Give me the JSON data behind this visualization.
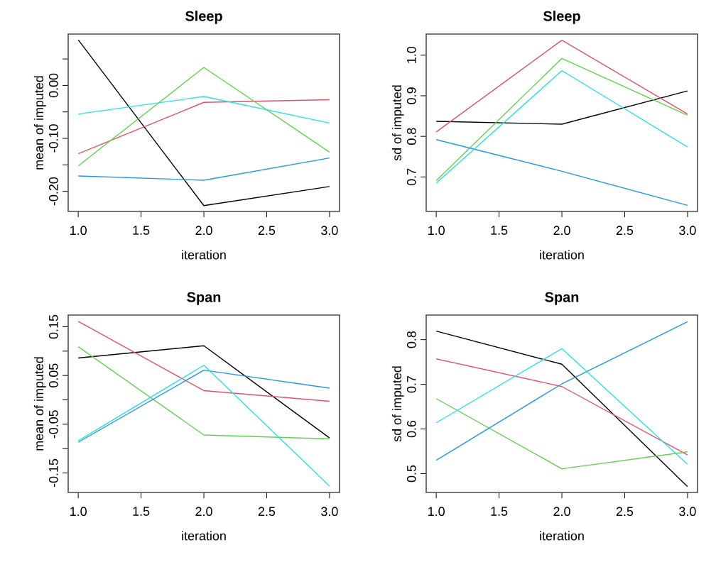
{
  "chart_data": [
    {
      "type": "line",
      "title": "Sleep",
      "xlabel": "iteration",
      "ylabel": "mean of imputed",
      "x": [
        1,
        2,
        3
      ],
      "xlim": [
        0.92,
        3.08
      ],
      "ylim": [
        -0.238,
        0.097
      ],
      "xticks": [
        {
          "value": 1,
          "label": "1.0"
        },
        {
          "value": 1.5,
          "label": "1.5"
        },
        {
          "value": 2,
          "label": "2.0"
        },
        {
          "value": 2.5,
          "label": "2.5"
        },
        {
          "value": 3,
          "label": "3.0"
        }
      ],
      "yticks": [
        {
          "value": -0.2,
          "label": "-0.20"
        },
        {
          "value": -0.15,
          "label": null
        },
        {
          "value": -0.1,
          "label": "-0.10"
        },
        {
          "value": -0.05,
          "label": null
        },
        {
          "value": 0,
          "label": "0.00"
        },
        {
          "value": 0.05,
          "label": null
        }
      ],
      "series": [
        {
          "color": "#000000",
          "values": [
            0.086,
            -0.227,
            -0.191
          ]
        },
        {
          "color": "#df536b",
          "values": [
            -0.129,
            -0.032,
            -0.027
          ]
        },
        {
          "color": "#61d04f",
          "values": [
            -0.152,
            0.034,
            -0.126
          ]
        },
        {
          "color": "#2297e6",
          "values": [
            -0.171,
            -0.179,
            -0.137
          ]
        },
        {
          "color": "#28e2e5",
          "values": [
            -0.054,
            -0.021,
            -0.071
          ]
        }
      ]
    },
    {
      "type": "line",
      "title": "Sleep",
      "xlabel": "iteration",
      "ylabel": "sd of imputed",
      "x": [
        1,
        2,
        3
      ],
      "xlim": [
        0.92,
        3.08
      ],
      "ylim": [
        0.615,
        1.052
      ],
      "xticks": [
        {
          "value": 1,
          "label": "1.0"
        },
        {
          "value": 1.5,
          "label": "1.5"
        },
        {
          "value": 2,
          "label": "2.0"
        },
        {
          "value": 2.5,
          "label": "2.5"
        },
        {
          "value": 3,
          "label": "3.0"
        }
      ],
      "yticks": [
        {
          "value": 0.7,
          "label": "0.7"
        },
        {
          "value": 0.8,
          "label": "0.8"
        },
        {
          "value": 0.9,
          "label": "0.9"
        },
        {
          "value": 1.0,
          "label": "1.0"
        }
      ],
      "series": [
        {
          "color": "#000000",
          "values": [
            0.837,
            0.83,
            0.912
          ]
        },
        {
          "color": "#df536b",
          "values": [
            0.811,
            1.037,
            0.855
          ]
        },
        {
          "color": "#61d04f",
          "values": [
            0.691,
            0.992,
            0.852
          ]
        },
        {
          "color": "#2297e6",
          "values": [
            0.792,
            0.714,
            0.63
          ]
        },
        {
          "color": "#28e2e5",
          "values": [
            0.685,
            0.962,
            0.774
          ]
        }
      ]
    },
    {
      "type": "line",
      "title": "Span",
      "xlabel": "iteration",
      "ylabel": "mean of imputed",
      "x": [
        1,
        2,
        3
      ],
      "xlim": [
        0.92,
        3.08
      ],
      "ylim": [
        -0.19,
        0.174
      ],
      "xticks": [
        {
          "value": 1,
          "label": "1.0"
        },
        {
          "value": 1.5,
          "label": "1.5"
        },
        {
          "value": 2,
          "label": "2.0"
        },
        {
          "value": 2.5,
          "label": "2.5"
        },
        {
          "value": 3,
          "label": "3.0"
        }
      ],
      "yticks": [
        {
          "value": -0.15,
          "label": "-0.15"
        },
        {
          "value": -0.1,
          "label": null
        },
        {
          "value": -0.05,
          "label": "-0.05"
        },
        {
          "value": 0,
          "label": null
        },
        {
          "value": 0.05,
          "label": "0.05"
        },
        {
          "value": 0.1,
          "label": null
        },
        {
          "value": 0.15,
          "label": "0.15"
        }
      ],
      "series": [
        {
          "color": "#000000",
          "values": [
            0.086,
            0.111,
            -0.078
          ]
        },
        {
          "color": "#df536b",
          "values": [
            0.161,
            0.019,
            -0.003
          ]
        },
        {
          "color": "#61d04f",
          "values": [
            0.109,
            -0.072,
            -0.08
          ]
        },
        {
          "color": "#2297e6",
          "values": [
            -0.087,
            0.061,
            0.024
          ]
        },
        {
          "color": "#28e2e5",
          "values": [
            -0.084,
            0.071,
            -0.177
          ]
        }
      ]
    },
    {
      "type": "line",
      "title": "Span",
      "xlabel": "iteration",
      "ylabel": "sd of imputed",
      "x": [
        1,
        2,
        3
      ],
      "xlim": [
        0.92,
        3.08
      ],
      "ylim": [
        0.458,
        0.855
      ],
      "xticks": [
        {
          "value": 1,
          "label": "1.0"
        },
        {
          "value": 1.5,
          "label": "1.5"
        },
        {
          "value": 2,
          "label": "2.0"
        },
        {
          "value": 2.5,
          "label": "2.5"
        },
        {
          "value": 3,
          "label": "3.0"
        }
      ],
      "yticks": [
        {
          "value": 0.5,
          "label": "0.5"
        },
        {
          "value": 0.6,
          "label": "0.6"
        },
        {
          "value": 0.7,
          "label": "0.7"
        },
        {
          "value": 0.8,
          "label": "0.8"
        }
      ],
      "series": [
        {
          "color": "#000000",
          "values": [
            0.819,
            0.745,
            0.471
          ]
        },
        {
          "color": "#df536b",
          "values": [
            0.757,
            0.695,
            0.542
          ]
        },
        {
          "color": "#61d04f",
          "values": [
            0.668,
            0.511,
            0.549
          ]
        },
        {
          "color": "#2297e6",
          "values": [
            0.53,
            0.701,
            0.84
          ]
        },
        {
          "color": "#28e2e5",
          "values": [
            0.614,
            0.78,
            0.521
          ]
        }
      ]
    }
  ]
}
